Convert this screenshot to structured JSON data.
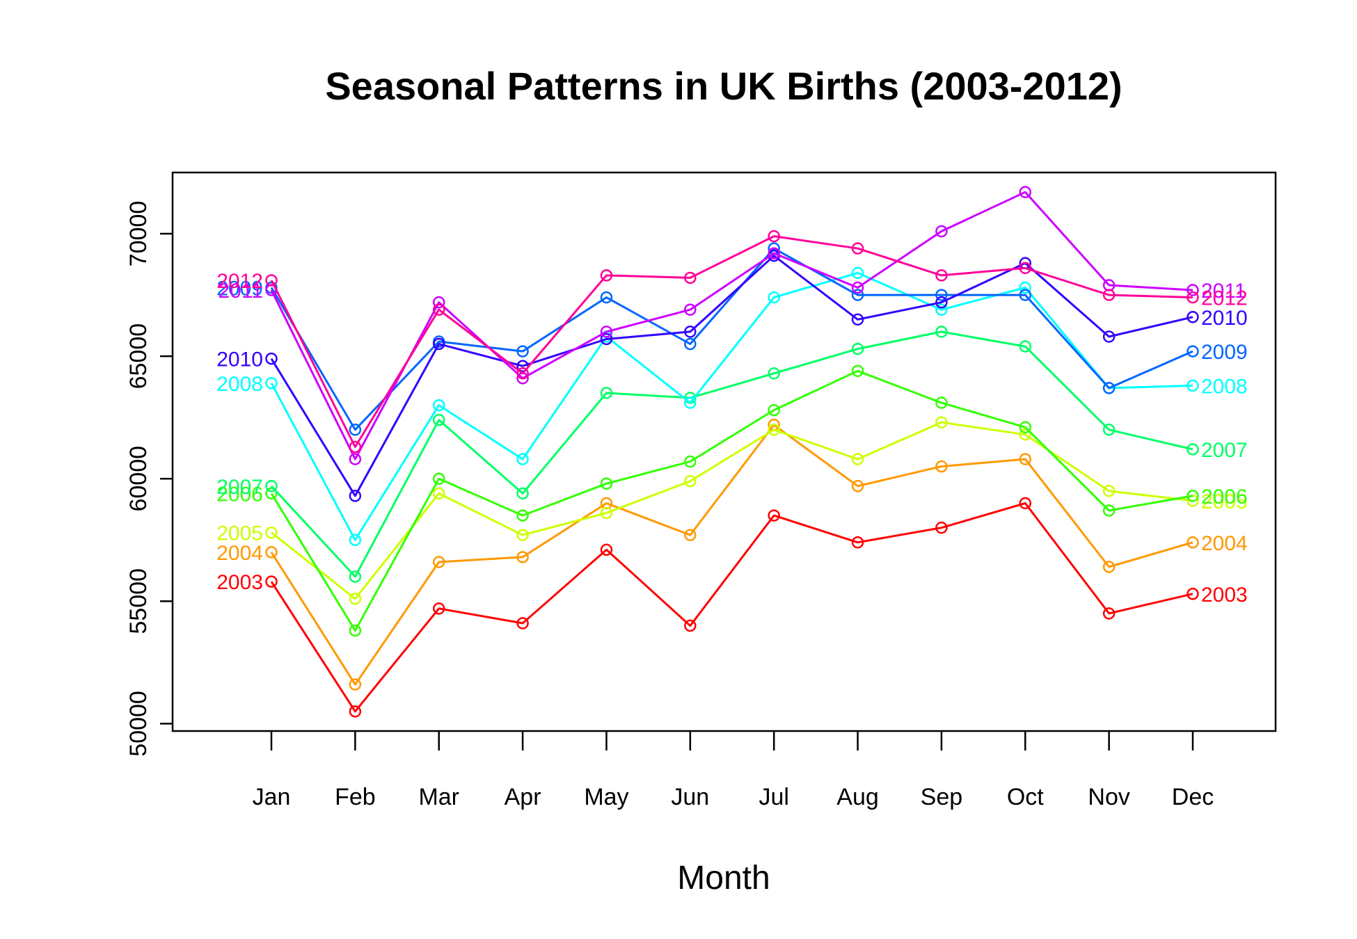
{
  "chart_data": {
    "type": "line",
    "title": "Seasonal Patterns in UK Births (2003-2012)",
    "xlabel": "Month",
    "ylabel": "",
    "ylim": [
      49700,
      72500
    ],
    "yticks": [
      50000,
      55000,
      60000,
      65000,
      70000
    ],
    "grid": false,
    "legend": "none",
    "categories": [
      "Jan",
      "Feb",
      "Mar",
      "Apr",
      "May",
      "Jun",
      "Jul",
      "Aug",
      "Sep",
      "Oct",
      "Nov",
      "Dec"
    ],
    "series": [
      {
        "name": "2003",
        "color": "#ff0000",
        "values": [
          55800,
          50500,
          54700,
          54100,
          57100,
          54000,
          58500,
          57400,
          58000,
          59000,
          54500,
          55300
        ]
      },
      {
        "name": "2004",
        "color": "#ff9900",
        "values": [
          57000,
          51600,
          56600,
          56800,
          59000,
          57700,
          62200,
          59700,
          60500,
          60800,
          56400,
          57400
        ]
      },
      {
        "name": "2005",
        "color": "#ccff00",
        "values": [
          57800,
          55100,
          59400,
          57700,
          58600,
          59900,
          62000,
          60800,
          62300,
          61800,
          59500,
          59100
        ]
      },
      {
        "name": "2006",
        "color": "#33ff00",
        "values": [
          59400,
          53800,
          60000,
          58500,
          59800,
          60700,
          62800,
          64400,
          63100,
          62100,
          58700,
          59300
        ]
      },
      {
        "name": "2007",
        "color": "#00ff66",
        "values": [
          59700,
          56000,
          62400,
          59400,
          63500,
          63300,
          64300,
          65300,
          66000,
          65400,
          62000,
          61200
        ]
      },
      {
        "name": "2008",
        "color": "#00ffff",
        "values": [
          63900,
          57500,
          63000,
          60800,
          65800,
          63100,
          67400,
          68400,
          66900,
          67800,
          63700,
          63800
        ]
      },
      {
        "name": "2009",
        "color": "#0066ff",
        "values": [
          67800,
          62000,
          65600,
          65200,
          67400,
          65500,
          69400,
          67500,
          67500,
          67500,
          63700,
          65200
        ]
      },
      {
        "name": "2010",
        "color": "#3300ff",
        "values": [
          64900,
          59300,
          65500,
          64600,
          65700,
          66000,
          69100,
          66500,
          67200,
          68800,
          65800,
          66600
        ]
      },
      {
        "name": "2011",
        "color": "#cc00ff",
        "values": [
          67700,
          60800,
          67200,
          64100,
          66000,
          66900,
          69200,
          67800,
          70100,
          71700,
          67900,
          67700
        ]
      },
      {
        "name": "2012",
        "color": "#ff0099",
        "values": [
          68100,
          61300,
          66900,
          64300,
          68300,
          68200,
          69900,
          69400,
          68300,
          68600,
          67500,
          67400
        ]
      }
    ]
  }
}
